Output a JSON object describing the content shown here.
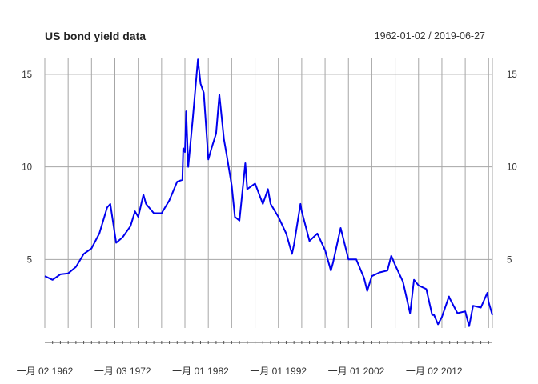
{
  "chart_data": {
    "type": "line",
    "title": "US bond yield data",
    "date_range_label": "1962-01-02 / 2019-06-27",
    "x_range": [
      "1962-01-02",
      "2019-06-27"
    ],
    "ylim": [
      1.3,
      15.9
    ],
    "y_ticks": [
      {
        "value": 5,
        "label": "5"
      },
      {
        "value": 10,
        "label": "10"
      },
      {
        "value": 15,
        "label": "15"
      }
    ],
    "x_tick_labels": [
      {
        "date": "1962-01-02",
        "label": "一月 02 1962"
      },
      {
        "date": "1972-01-03",
        "label": "一月 03 1972"
      },
      {
        "date": "1982-01-01",
        "label": "一月 01 1982"
      },
      {
        "date": "1992-01-01",
        "label": "一月 01 1992"
      },
      {
        "date": "2002-01-01",
        "label": "一月 01 2002"
      },
      {
        "date": "2012-01-02",
        "label": "一月 02 2012"
      }
    ],
    "grid": true,
    "line_color": "#0000ee",
    "grid_color": "#a6a6a6",
    "series": [
      {
        "x": [
          "1962-01-02",
          "1963-01-01",
          "1964-01-01",
          "1965-01-01",
          "1966-01-01",
          "1967-01-01",
          "1968-01-01",
          "1969-01-01",
          "1970-01-01",
          "1970-06-01",
          "1971-03-01",
          "1972-01-01",
          "1973-01-01",
          "1973-08-01",
          "1974-01-01",
          "1974-09-01",
          "1975-01-01",
          "1976-01-01",
          "1977-01-01",
          "1978-01-01",
          "1979-01-01",
          "1979-09-01",
          "1979-10-15",
          "1980-01-01",
          "1980-03-01",
          "1980-06-01",
          "1981-01-01",
          "1981-09-01",
          "1982-01-01",
          "1982-06-01",
          "1982-09-01",
          "1983-01-01",
          "1983-06-01",
          "1984-01-01",
          "1984-06-01",
          "1985-01-01",
          "1985-06-01",
          "1986-01-01",
          "1986-06-01",
          "1987-01-01",
          "1987-10-01",
          "1988-01-01",
          "1989-01-01",
          "1990-01-01",
          "1990-09-01",
          "1991-01-01",
          "1992-01-01",
          "1993-01-01",
          "1993-10-01",
          "1994-01-01",
          "1994-11-01",
          "1995-01-01",
          "1996-01-01",
          "1997-01-01",
          "1998-01-01",
          "1998-10-01",
          "1999-01-01",
          "2000-01-01",
          "2001-01-01",
          "2002-01-01",
          "2003-01-01",
          "2003-06-01",
          "2004-01-01",
          "2005-01-01",
          "2006-01-01",
          "2006-07-01",
          "2007-01-01",
          "2008-01-01",
          "2008-12-01",
          "2009-01-01",
          "2009-06-01",
          "2010-01-01",
          "2011-01-01",
          "2011-10-01",
          "2012-01-01",
          "2012-07-01",
          "2013-01-01",
          "2013-12-01",
          "2014-01-01",
          "2015-01-01",
          "2016-01-01",
          "2016-07-01",
          "2017-01-01",
          "2018-01-01",
          "2018-11-01",
          "2019-01-01",
          "2019-06-27"
        ],
        "y": [
          4.1,
          3.9,
          4.2,
          4.25,
          4.6,
          5.3,
          5.6,
          6.4,
          7.8,
          8.0,
          5.9,
          6.2,
          6.8,
          7.6,
          7.3,
          8.5,
          8.0,
          7.5,
          7.5,
          8.2,
          9.2,
          9.3,
          11.0,
          10.8,
          13.0,
          10.0,
          12.6,
          15.8,
          14.5,
          14.0,
          12.5,
          10.4,
          11.0,
          11.8,
          13.9,
          11.5,
          10.5,
          9.0,
          7.3,
          7.1,
          10.2,
          8.8,
          9.1,
          8.0,
          8.8,
          8.0,
          7.3,
          6.4,
          5.3,
          5.8,
          8.0,
          7.6,
          6.0,
          6.4,
          5.5,
          4.4,
          4.8,
          6.7,
          5.0,
          5.0,
          4.0,
          3.3,
          4.1,
          4.3,
          4.4,
          5.2,
          4.7,
          3.8,
          2.1,
          2.4,
          3.9,
          3.6,
          3.4,
          2.0,
          2.0,
          1.5,
          1.9,
          3.0,
          2.9,
          2.1,
          2.2,
          1.4,
          2.5,
          2.4,
          3.2,
          2.7,
          2.0
        ]
      }
    ]
  }
}
